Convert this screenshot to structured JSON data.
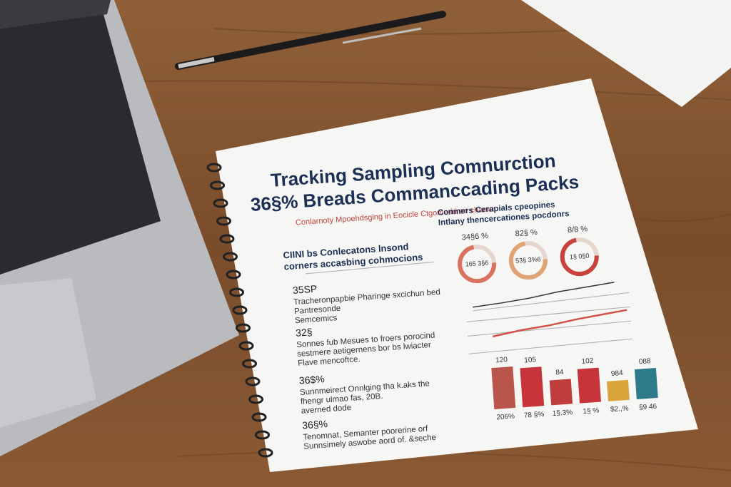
{
  "document": {
    "title_lines": [
      "Tracking Sampling Comnurction",
      "36§% Breads Commanccading Packs"
    ],
    "subtitle": "Conlarnoty  Mpoehdsging in Eocicle Ctgomeririree charne",
    "left": {
      "heading_lines": [
        "CIINI bs Conlecatons lnsond",
        "corners accasbing cohmocions"
      ],
      "items": [
        {
          "tag": "35SP",
          "lines": [
            "Tracheronpapbie  Pharinge sxcichun bed",
            "Pantresonde",
            "Semcemics"
          ]
        },
        {
          "tag": "32§",
          "lines": [
            "Sonnes fub Mesues to froers porocind",
            "sestmere aetigernens bor bs lwiacter",
            "Flave mencoftce."
          ]
        },
        {
          "tag": "36$%",
          "lines": [
            "Sunnmeirect Onnlging tha k.aks the",
            "fhengr ulmao fas, 20B.",
            "averned dode"
          ]
        },
        {
          "tag": "36§%",
          "lines": [
            "Tenomnat, Semanter poorerine orf",
            "Sunnsimely aswobe aord of. &seche"
          ]
        }
      ]
    },
    "right": {
      "heading_lines": [
        "Conmers Cerapials cpeopines",
        "Intlany thencercationes pocdonrs"
      ],
      "donuts": [
        {
          "top": "34§6 %",
          "center": "165 3§6"
        },
        {
          "top": "82§ %",
          "center": "53§ 3%6"
        },
        {
          "top": "8/8 %",
          "center": "1§ 0§0"
        }
      ],
      "bars": [
        {
          "top": "120",
          "bottom": "206%"
        },
        {
          "top": "105",
          "bottom": "78 §%"
        },
        {
          "top": "84",
          "bottom": "1§.3%"
        },
        {
          "top": "102",
          "bottom": "1§ %"
        },
        {
          "top": "984",
          "bottom": "$2.,%"
        },
        {
          "top": "088",
          "bottom": "§9 46"
        }
      ]
    }
  }
}
